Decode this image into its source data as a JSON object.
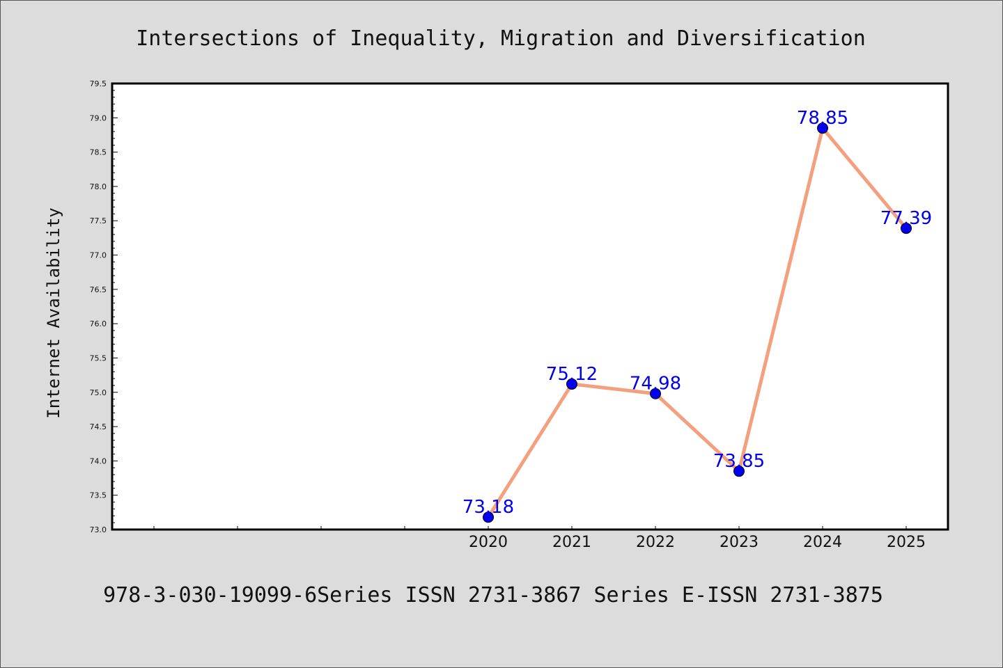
{
  "chart_data": {
    "type": "line",
    "title": "Intersections of Inequality, Migration and Diversification",
    "xlabel": "",
    "ylabel": "Internet Availability",
    "categories": [
      "2020",
      "2021",
      "2022",
      "2023",
      "2024",
      "2025"
    ],
    "values": [
      73.18,
      75.12,
      74.98,
      73.85,
      78.85,
      77.39
    ],
    "data_labels": [
      "73.18",
      "75.12",
      "74.98",
      "73.85",
      "78.85",
      "77.39"
    ],
    "ylim": [
      73.0,
      79.5
    ],
    "yticks": [
      "73.0",
      "73.5",
      "74.0",
      "74.5",
      "75.0",
      "75.5",
      "76.0",
      "76.5",
      "77.0",
      "77.5",
      "78.0",
      "78.5",
      "79.0",
      "79.5"
    ],
    "xlim": [
      2015.5,
      2025.5
    ],
    "grid": false,
    "line_color": "#f4a07f",
    "marker_color": "#0000ee",
    "label_color": "#0000ee"
  },
  "footer": "978-3-030-19099-6Series ISSN 2731-3867 Series E-ISSN 2731-3875"
}
